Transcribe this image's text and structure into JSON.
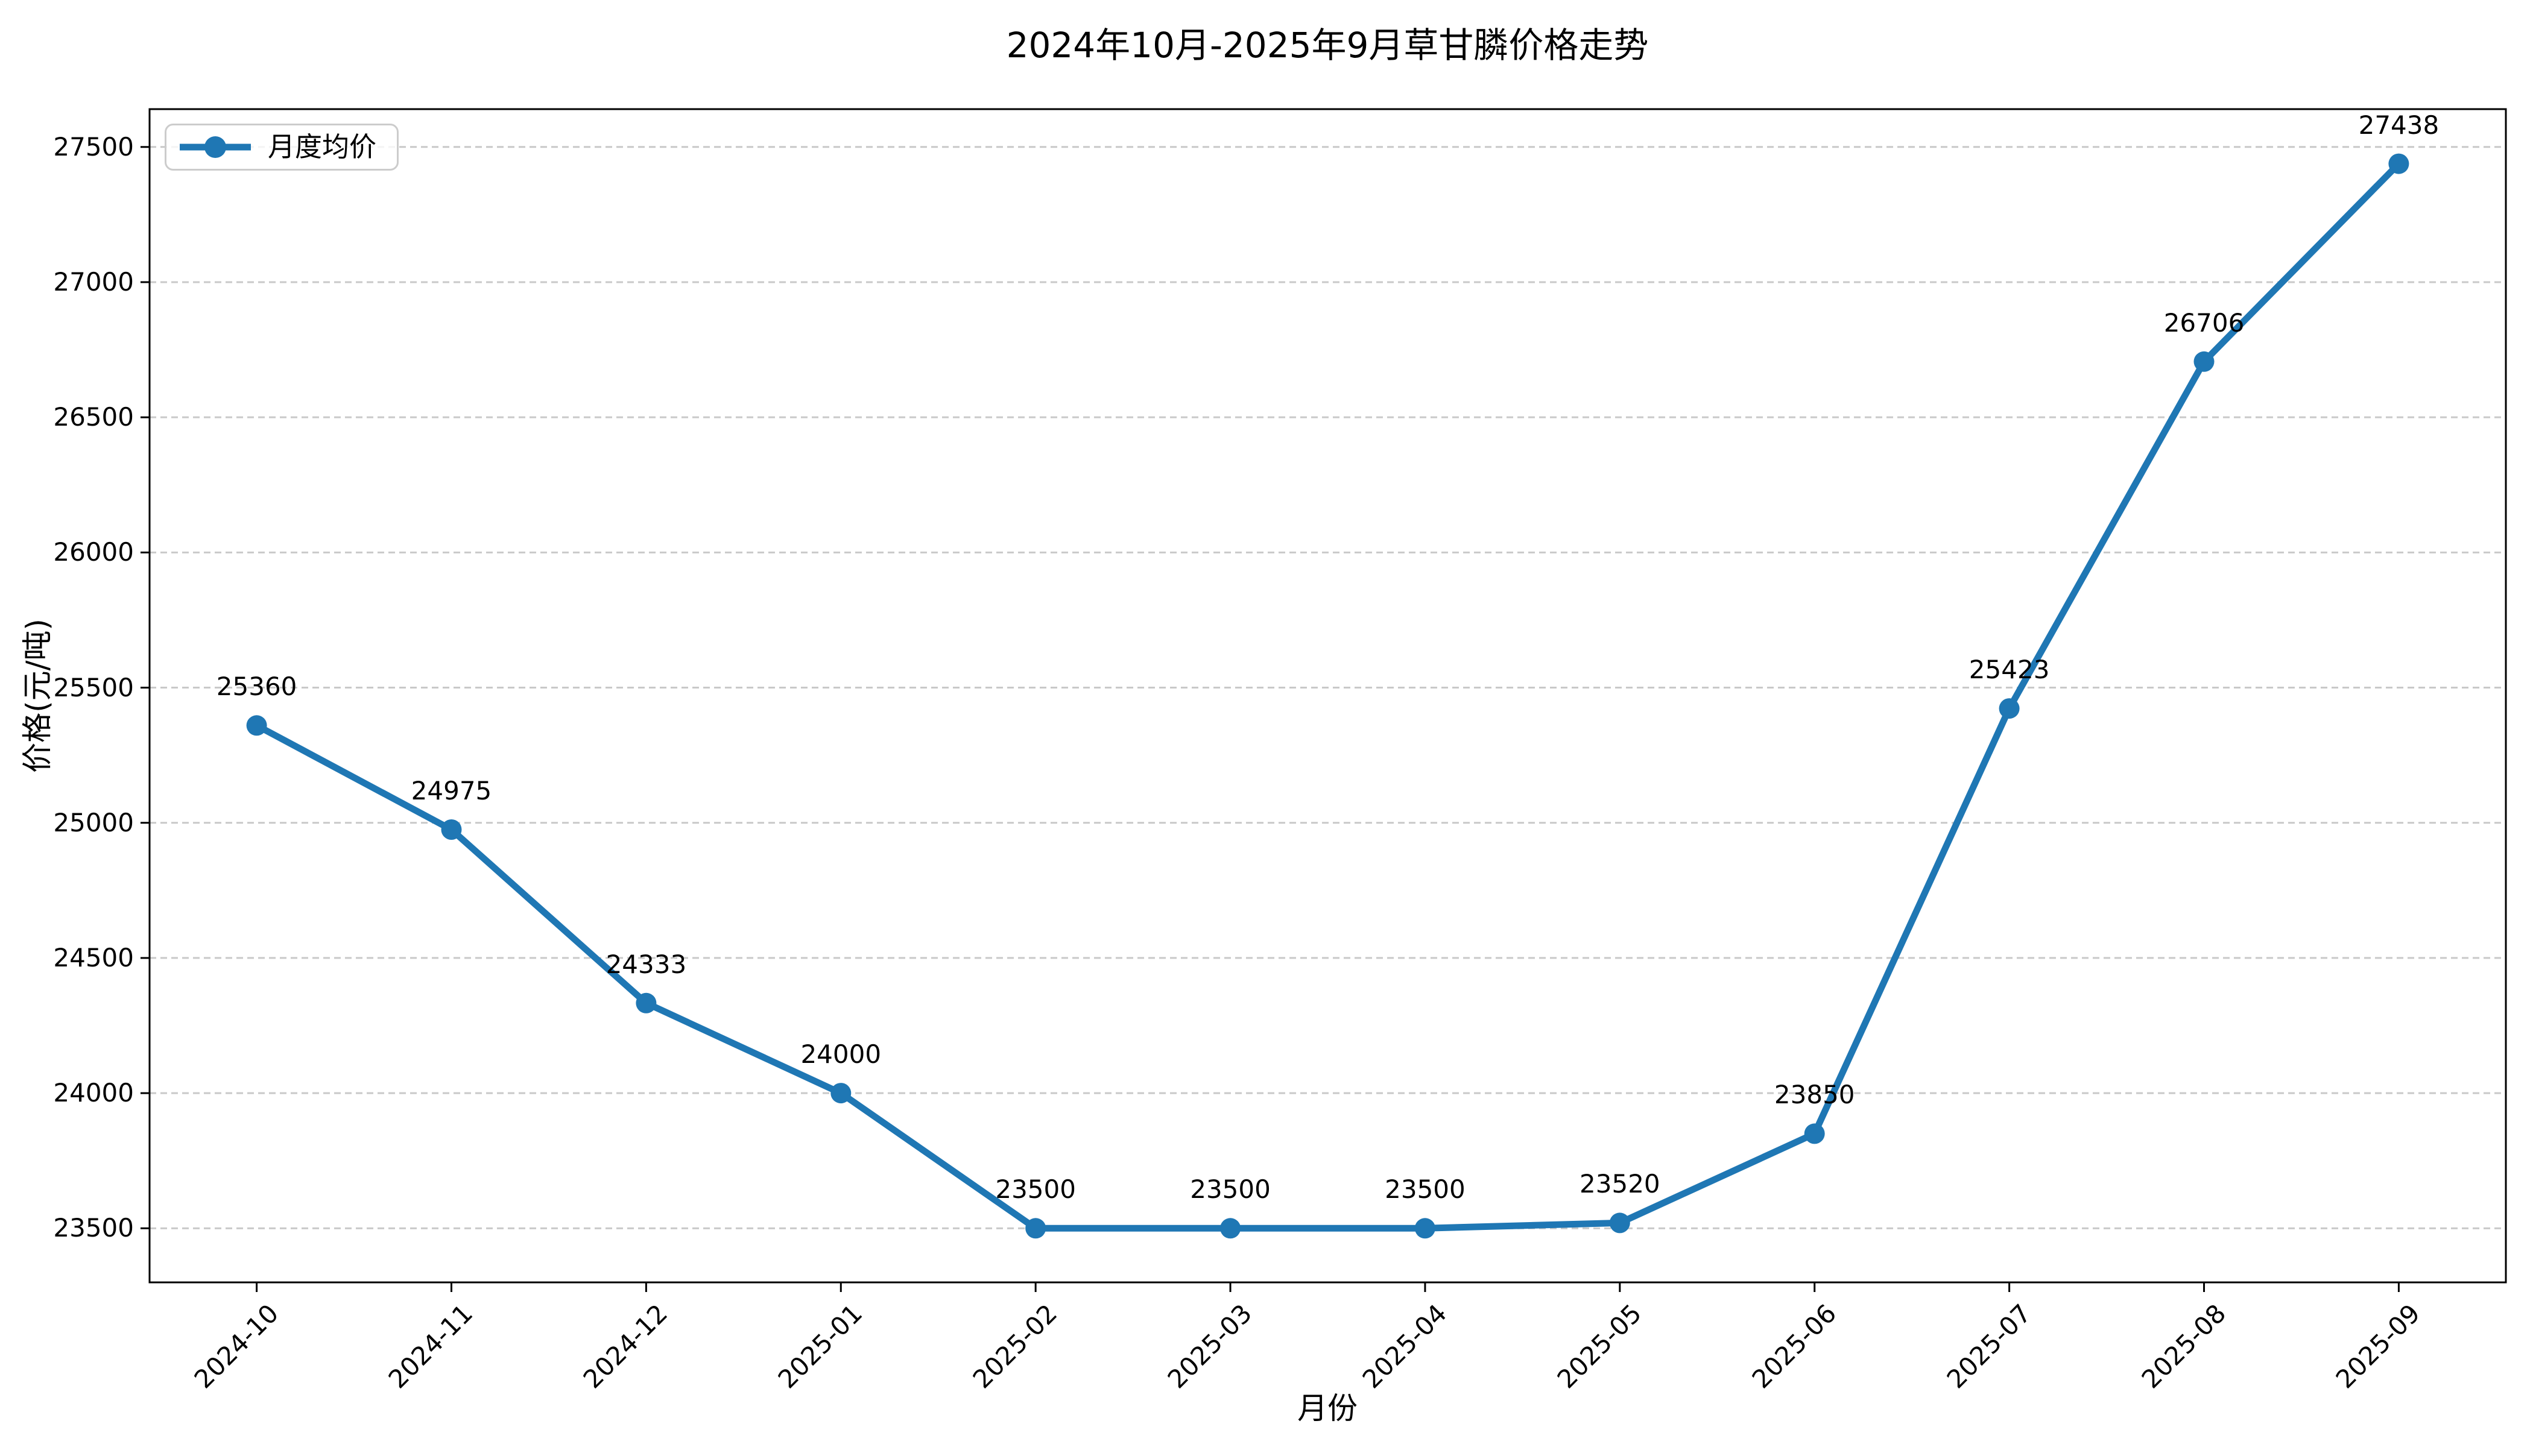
{
  "chart_data": {
    "type": "line",
    "title": "2024年10月-2025年9月草甘膦价格走势",
    "xlabel": "月份",
    "ylabel": "价格(元/吨)",
    "legend": {
      "entries": [
        "月度均价"
      ],
      "position": "upper left"
    },
    "categories": [
      "2024-10",
      "2024-11",
      "2024-12",
      "2025-01",
      "2025-02",
      "2025-03",
      "2025-04",
      "2025-05",
      "2025-06",
      "2025-07",
      "2025-08",
      "2025-09"
    ],
    "series": [
      {
        "name": "月度均价",
        "values": [
          25360,
          24975,
          24333,
          24000,
          23500,
          23500,
          23500,
          23520,
          23850,
          25423,
          26706,
          27438
        ]
      }
    ],
    "annotations": [
      "25360",
      "24975",
      "24333",
      "24000",
      "23500",
      "23500",
      "23500",
      "23520",
      "23850",
      "25423",
      "26706",
      "27438"
    ],
    "yticks": [
      23500,
      24000,
      24500,
      25000,
      25500,
      26000,
      26500,
      27000,
      27500
    ],
    "ylim": [
      23300,
      27640
    ],
    "grid": "horizontal, dashed",
    "colors": {
      "line": "#1f77b4",
      "marker": "#1f77b4",
      "grid": "#c9c9c9",
      "spine": "#000000",
      "text": "#000000",
      "legend_border": "#cccccc",
      "background": "#ffffff"
    }
  }
}
